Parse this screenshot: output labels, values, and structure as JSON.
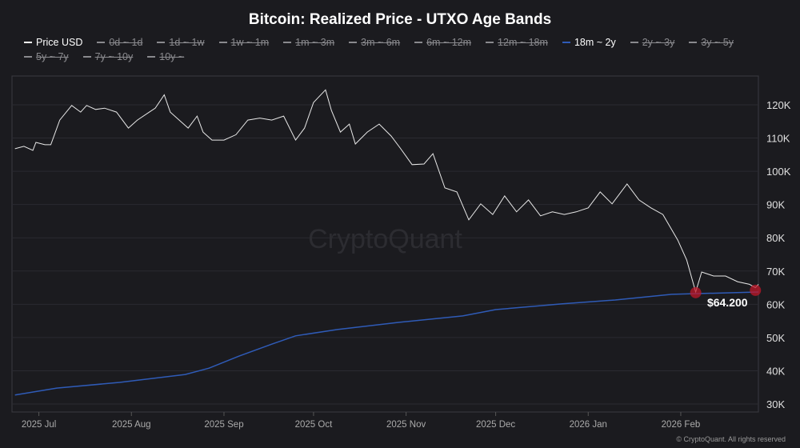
{
  "title": "Bitcoin: Realized Price - UTXO Age Bands",
  "legend": [
    {
      "label": "Price USD",
      "active": true,
      "color": "#ffffff"
    },
    {
      "label": "0d ~ 1d",
      "active": false
    },
    {
      "label": "1d ~ 1w",
      "active": false
    },
    {
      "label": "1w ~ 1m",
      "active": false
    },
    {
      "label": "1m ~ 3m",
      "active": false
    },
    {
      "label": "3m ~ 6m",
      "active": false
    },
    {
      "label": "6m ~ 12m",
      "active": false
    },
    {
      "label": "12m ~ 18m",
      "active": false
    },
    {
      "label": "18m ~ 2y",
      "active": true,
      "color": "#2f5bb7"
    },
    {
      "label": "2y ~ 3y",
      "active": false
    },
    {
      "label": "3y ~ 5y",
      "active": false
    },
    {
      "label": "5y ~ 7y",
      "active": false
    },
    {
      "label": "7y ~ 10y",
      "active": false
    },
    {
      "label": "10y ~",
      "active": false
    }
  ],
  "watermark": "CryptoQuant",
  "copyright": "© CryptoQuant. All rights reserved",
  "chart_data": {
    "type": "line",
    "title": "Bitcoin: Realized Price - UTXO Age Bands",
    "x_unit": "days since chart start (2025 late Jun)",
    "xlim": [
      0,
      250
    ],
    "ylim": [
      28,
      128
    ],
    "y_unit": "thousand USD",
    "yticks": [
      {
        "v": 30,
        "label": "30K"
      },
      {
        "v": 40,
        "label": "40K"
      },
      {
        "v": 50,
        "label": "50K"
      },
      {
        "v": 60,
        "label": "60K"
      },
      {
        "v": 70,
        "label": "70K"
      },
      {
        "v": 80,
        "label": "80K"
      },
      {
        "v": 90,
        "label": "90K"
      },
      {
        "v": 100,
        "label": "100K"
      },
      {
        "v": 110,
        "label": "110K"
      },
      {
        "v": 120,
        "label": "120K"
      }
    ],
    "xticks": [
      {
        "v": 9,
        "label": "2025 Jul"
      },
      {
        "v": 40,
        "label": "2025 Aug"
      },
      {
        "v": 71,
        "label": "2025 Sep"
      },
      {
        "v": 101,
        "label": "2025 Oct"
      },
      {
        "v": 132,
        "label": "2025 Nov"
      },
      {
        "v": 162,
        "label": "2025 Dec"
      },
      {
        "v": 193,
        "label": "2026 Jan"
      },
      {
        "v": 224,
        "label": "2026 Feb"
      }
    ],
    "series": [
      {
        "name": "Price USD",
        "color": "#e8e8e8",
        "x": [
          1,
          4,
          7,
          8,
          11,
          13,
          16,
          20,
          23,
          25,
          28,
          31,
          35,
          39,
          42,
          46,
          48,
          51,
          53,
          56,
          59,
          62,
          64,
          67,
          71,
          75,
          79,
          83,
          87,
          91,
          95,
          98,
          101,
          105,
          107,
          110,
          113,
          115,
          119,
          123,
          127,
          130,
          134,
          138,
          141,
          145,
          149,
          153,
          157,
          161,
          165,
          169,
          173,
          177,
          181,
          185,
          189,
          193,
          197,
          201,
          206,
          210,
          214,
          218,
          223,
          226,
          229,
          231,
          235,
          239,
          243,
          247,
          249,
          250
        ],
        "y": [
          106.8,
          107.5,
          106.3,
          108.7,
          108,
          108,
          115.4,
          119.8,
          117.8,
          119.8,
          118.6,
          119,
          117.8,
          113,
          115.4,
          117.8,
          119,
          123,
          117.8,
          115.4,
          113,
          116.6,
          111.8,
          109.4,
          109.4,
          111,
          115.4,
          116,
          115.4,
          116.6,
          109.4,
          113,
          120.7,
          124.5,
          118.3,
          111.8,
          114.2,
          108.2,
          111.8,
          114.2,
          110.6,
          107,
          102,
          102.2,
          105.3,
          95,
          93.8,
          85.4,
          90.2,
          87,
          92.6,
          87.8,
          91.4,
          86.6,
          87.8,
          87,
          87.8,
          89,
          93.8,
          90.2,
          96.2,
          91.4,
          89,
          87,
          79.3,
          73.3,
          63.7,
          69.7,
          68.5,
          68.5,
          66.8,
          66,
          65,
          66
        ]
      },
      {
        "name": "18m ~ 2y",
        "color": "#2f5bb7",
        "x": [
          1,
          15,
          36,
          58,
          66,
          76,
          87,
          95,
          109,
          130,
          151,
          162,
          184,
          202,
          221,
          250
        ],
        "y": [
          32.7,
          34.8,
          36.5,
          38.9,
          40.8,
          44.4,
          48,
          50.5,
          52.4,
          54.6,
          56.5,
          58.4,
          60.1,
          61.3,
          63,
          63.7
        ]
      }
    ],
    "annotations": [
      {
        "x": 229,
        "y": 63.5,
        "type": "marker"
      },
      {
        "x": 249,
        "y": 64.2,
        "type": "marker",
        "label": "$64.200"
      }
    ]
  }
}
